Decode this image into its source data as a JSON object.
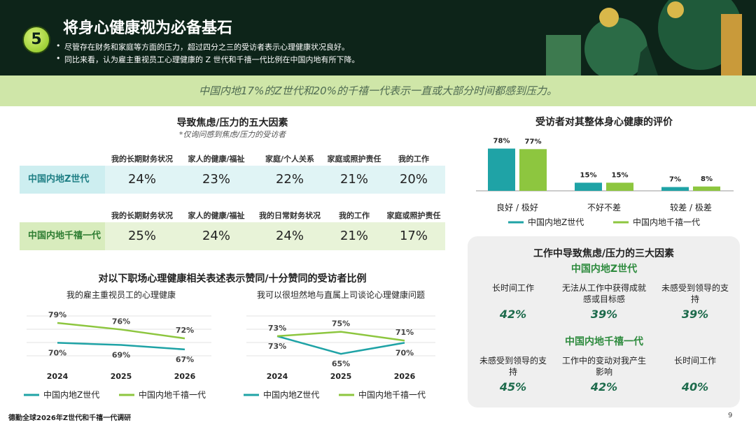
{
  "header": {
    "number": "5",
    "title": "将身心健康视为必备基石",
    "bullets": [
      "尽管存在财务和家庭等方面的压力，超过四分之三的受访者表示心理健康状况良好。",
      "同比来看，认为雇主重视员工心理健康的 Z 世代和千禧一代比例在中国内地有所下降。"
    ]
  },
  "banner": "中国内地17%的Z世代和20%的千禧一代表示一直或大部分时间都感到压力。",
  "stress_factors": {
    "title": "导致焦虑/压力的五大因素",
    "note": "*仅询问感到焦虑/压力的受访者",
    "groups": [
      {
        "name": "中国内地Z世代",
        "factors": [
          "我的长期财务状况",
          "家人的健康/福祉",
          "家庭/个人关系",
          "家庭或照护责任",
          "我的工作"
        ],
        "values": [
          "24%",
          "23%",
          "22%",
          "21%",
          "20%"
        ]
      },
      {
        "name": "中国内地千禧一代",
        "factors": [
          "我的长期财务状况",
          "家人的健康/福祉",
          "我的日常财务状况",
          "我的工作",
          "家庭或照护责任"
        ],
        "values": [
          "25%",
          "24%",
          "24%",
          "21%",
          "17%"
        ]
      }
    ]
  },
  "line_section_title": "对以下职场心理健康相关表述表示赞同/十分赞同的受访者比例",
  "chart_data": [
    {
      "type": "bar",
      "title": "受访者对其整体身心健康的评价",
      "categories": [
        "良好 / 极好",
        "不好不差",
        "较差 / 极差"
      ],
      "ylim": [
        0,
        80
      ],
      "series": [
        {
          "name": "中国内地Z世代",
          "color": "#1fa3a6",
          "values": [
            78,
            15,
            7
          ],
          "value_labels": [
            "78%",
            "15%",
            "7%"
          ]
        },
        {
          "name": "中国内地千禧一代",
          "color": "#8dc63f",
          "values": [
            77,
            15,
            8
          ],
          "value_labels": [
            "77%",
            "15%",
            "8%"
          ]
        }
      ]
    },
    {
      "type": "line",
      "title": "我的雇主重视员工的心理健康",
      "categories": [
        "2024",
        "2025",
        "2026"
      ],
      "ylim": [
        60,
        85
      ],
      "series": [
        {
          "name": "中国内地Z世代",
          "color": "#1fa3a6",
          "values": [
            70,
            69,
            67
          ],
          "value_labels": [
            "70%",
            "69%",
            "67%"
          ]
        },
        {
          "name": "中国内地千禧一代",
          "color": "#8dc63f",
          "values": [
            79,
            76,
            72
          ],
          "value_labels": [
            "79%",
            "76%",
            "72%"
          ]
        }
      ]
    },
    {
      "type": "line",
      "title": "我可以很坦然地与直属上司谈论心理健康问题",
      "categories": [
        "2024",
        "2025",
        "2026"
      ],
      "ylim": [
        60,
        85
      ],
      "series": [
        {
          "name": "中国内地Z世代",
          "color": "#1fa3a6",
          "values": [
            73,
            65,
            70
          ],
          "value_labels": [
            "73%",
            "65%",
            "70%"
          ]
        },
        {
          "name": "中国内地千禧一代",
          "color": "#8dc63f",
          "values": [
            73,
            75,
            71
          ],
          "value_labels": [
            "73%",
            "75%",
            "71%"
          ]
        }
      ]
    }
  ],
  "work_factors": {
    "title": "工作中导致焦虑/压力的三大因素",
    "groups": [
      {
        "name": "中国内地Z世代",
        "items": [
          {
            "label": "长时间工作",
            "value": "42%"
          },
          {
            "label": "无法从工作中获得成就感或目标感",
            "value": "39%"
          },
          {
            "label": "未感受到领导的支持",
            "value": "39%"
          }
        ]
      },
      {
        "name": "中国内地千禧一代",
        "items": [
          {
            "label": "未感受到领导的支持",
            "value": "45%"
          },
          {
            "label": "工作中的变动对我产生影响",
            "value": "42%"
          },
          {
            "label": "长时间工作",
            "value": "40%"
          }
        ]
      }
    ]
  },
  "footer": {
    "source": "德勤全球2026年Z世代和千禧一代调研",
    "page": "9"
  }
}
